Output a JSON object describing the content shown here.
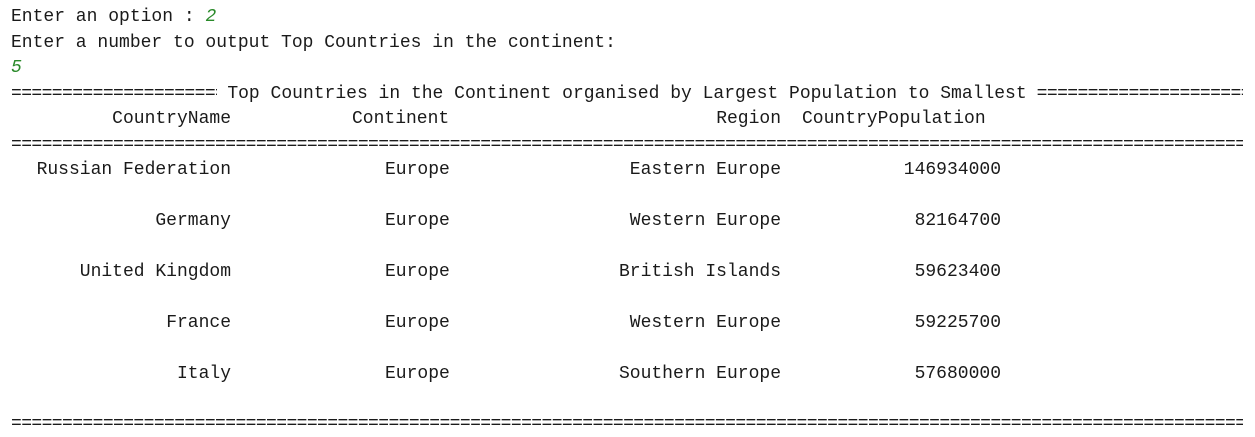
{
  "prompts": {
    "option_prompt": "Enter an option : ",
    "option_value": "2",
    "number_prompt": "Enter a number to output Top Countries in the continent:",
    "number_value": "5"
  },
  "report": {
    "title": "Top Countries in the Continent organised by Largest Population to Smallest",
    "rule_char": "=",
    "headers": {
      "country": "CountryName",
      "continent": "Continent",
      "region": "Region",
      "population": "CountryPopulation"
    },
    "rows": [
      {
        "country": "Russian Federation",
        "continent": "Europe",
        "region": "Eastern Europe",
        "population": "146934000"
      },
      {
        "country": "Germany",
        "continent": "Europe",
        "region": "Western Europe",
        "population": "82164700"
      },
      {
        "country": "United Kingdom",
        "continent": "Europe",
        "region": "British Islands",
        "population": "59623400"
      },
      {
        "country": "France",
        "continent": "Europe",
        "region": "Western Europe",
        "population": "59225700"
      },
      {
        "country": "Italy",
        "continent": "Europe",
        "region": "Southern Europe",
        "population": "57680000"
      }
    ]
  },
  "colors": {
    "input_text": "#2a8a2a",
    "output_text": "#1a1a1a",
    "background": "#ffffff"
  }
}
